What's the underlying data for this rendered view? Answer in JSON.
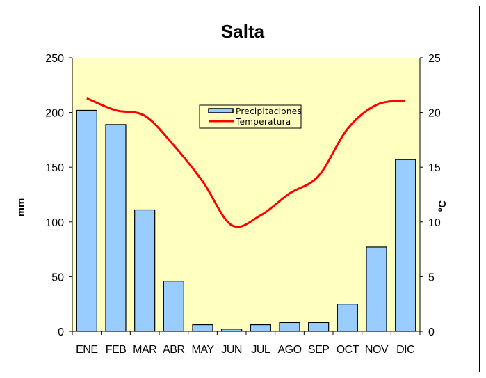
{
  "chart_data": {
    "type": "bar+line",
    "title": "Salta",
    "categories": [
      "ENE",
      "FEB",
      "MAR",
      "ABR",
      "MAY",
      "JUN",
      "JUL",
      "AGO",
      "SEP",
      "OCT",
      "NOV",
      "DIC"
    ],
    "series": [
      {
        "name": "Precipitaciones",
        "type": "bar",
        "axis": "left",
        "color": "#99ccff",
        "values": [
          202,
          189,
          111,
          46,
          6,
          2,
          6,
          8,
          8,
          25,
          77,
          157
        ]
      },
      {
        "name": "Temperatura",
        "type": "line",
        "axis": "right",
        "color": "#ff0000",
        "values": [
          21.3,
          20.2,
          19.7,
          17.0,
          13.7,
          9.7,
          10.6,
          12.6,
          14.2,
          18.5,
          20.7,
          21.1
        ]
      }
    ],
    "ylabel": "mm",
    "ylim": [
      0,
      250
    ],
    "yticks": [
      0,
      50,
      100,
      150,
      200,
      250
    ],
    "y2label": "ºC",
    "y2lim": [
      0,
      25
    ],
    "y2ticks": [
      0,
      5,
      10,
      15,
      20,
      25
    ],
    "plot_background": "#ffffc0",
    "grid": false,
    "legend_position": "top-center"
  }
}
